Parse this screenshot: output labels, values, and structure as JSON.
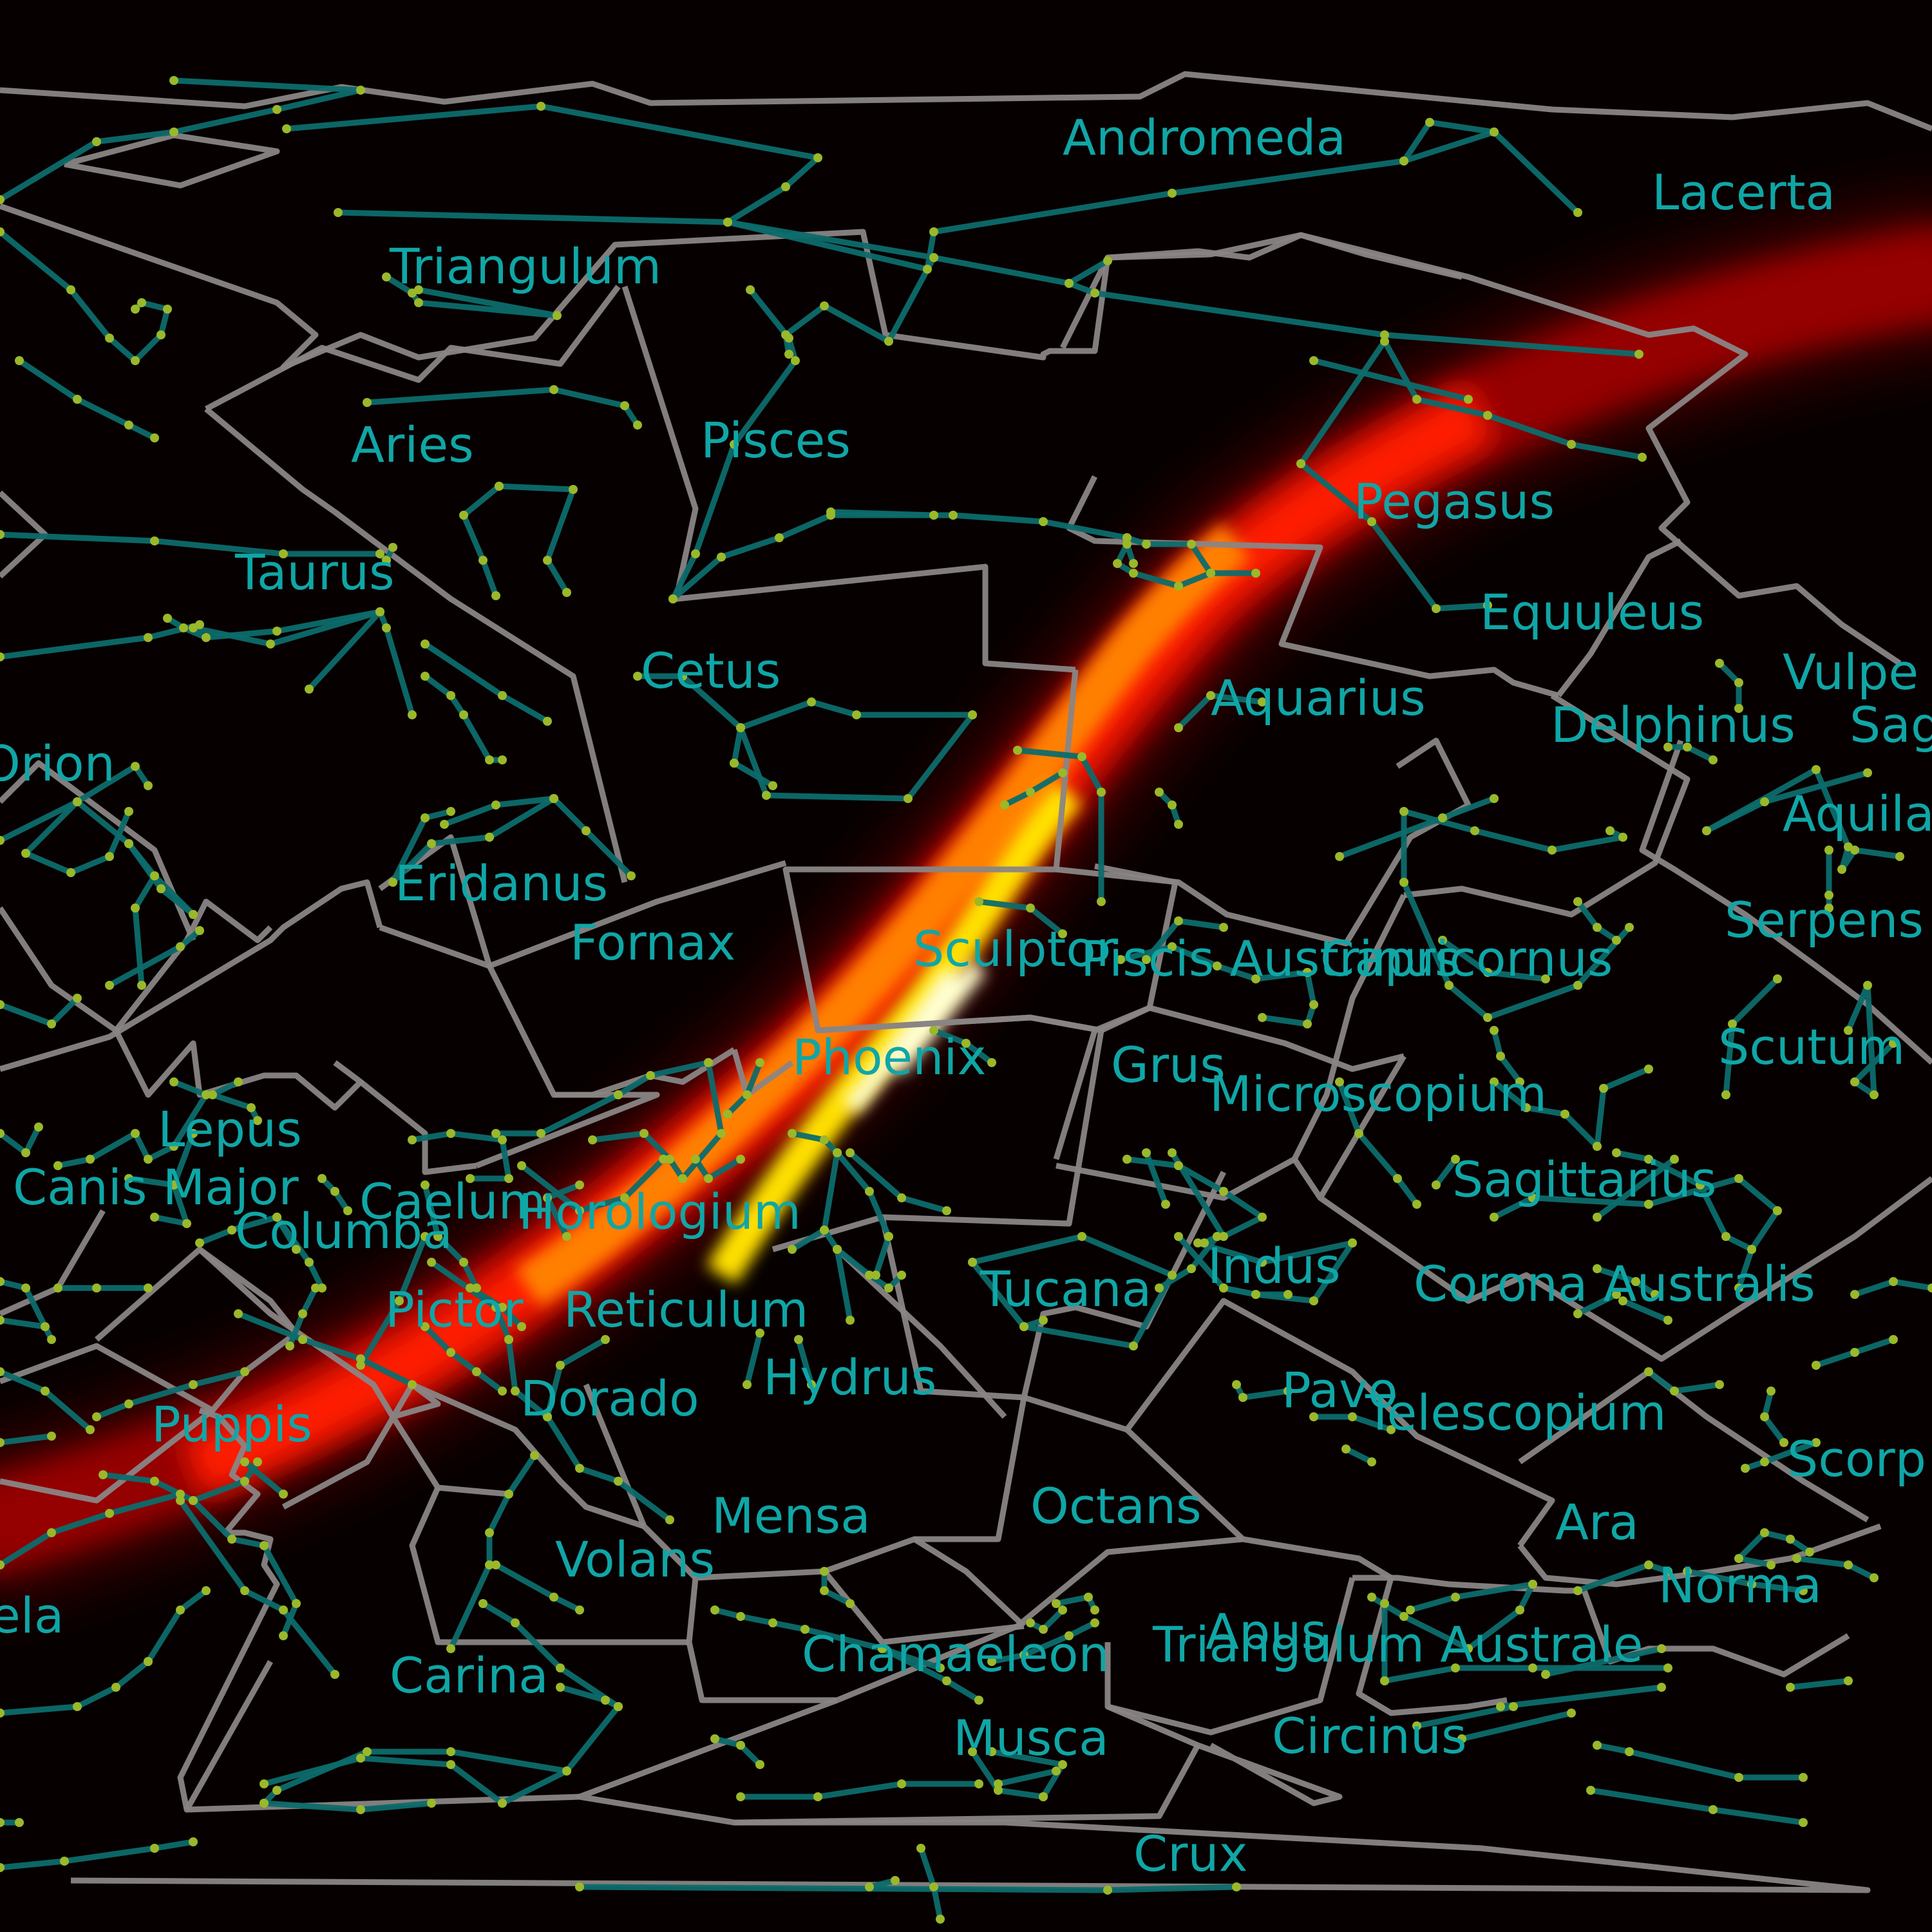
{
  "map": {
    "background_color": "#070000",
    "label_color": "#10a6a6",
    "boundary_color": "#8a8585",
    "stick_figure_color": "#0d6b6b",
    "star_color": "#9ab82a",
    "probability_colormap": [
      "#3a0000",
      "#a00000",
      "#ff1a00",
      "#ff8000",
      "#ffe000",
      "#ffffd0"
    ],
    "constellation_labels": [
      "Andromeda",
      "Lacerta",
      "Triangulum",
      "Pisces",
      "Aries",
      "Pegasus",
      "Taurus",
      "Equuleus",
      "Cetus",
      "Aquarius",
      "Vulpe",
      "Delphinus",
      "Sag",
      "Orion",
      "Aquila",
      "Eridanus",
      "Fornax",
      "Sculptor",
      "Piscis Austrinus",
      "Capricornus",
      "Serpens",
      "Phoenix",
      "Grus",
      "Scutum",
      "Microscopium",
      "Lepus",
      "Sagittarius",
      "Canis Major",
      "Caelum",
      "Horologium",
      "Columba",
      "Indus",
      "Corona Australis",
      "Tucana",
      "Pictor",
      "Reticulum",
      "Hydrus",
      "Pavo",
      "Puppis",
      "Telescopium",
      "Dorado",
      "Scorp",
      "Octans",
      "Ara",
      "Mensa",
      "Volans",
      "Norma",
      "ela",
      "Apus",
      "Triangulum Australe",
      "Chamaeleon",
      "Carina",
      "Circinus",
      "Musca",
      "Crux"
    ]
  }
}
